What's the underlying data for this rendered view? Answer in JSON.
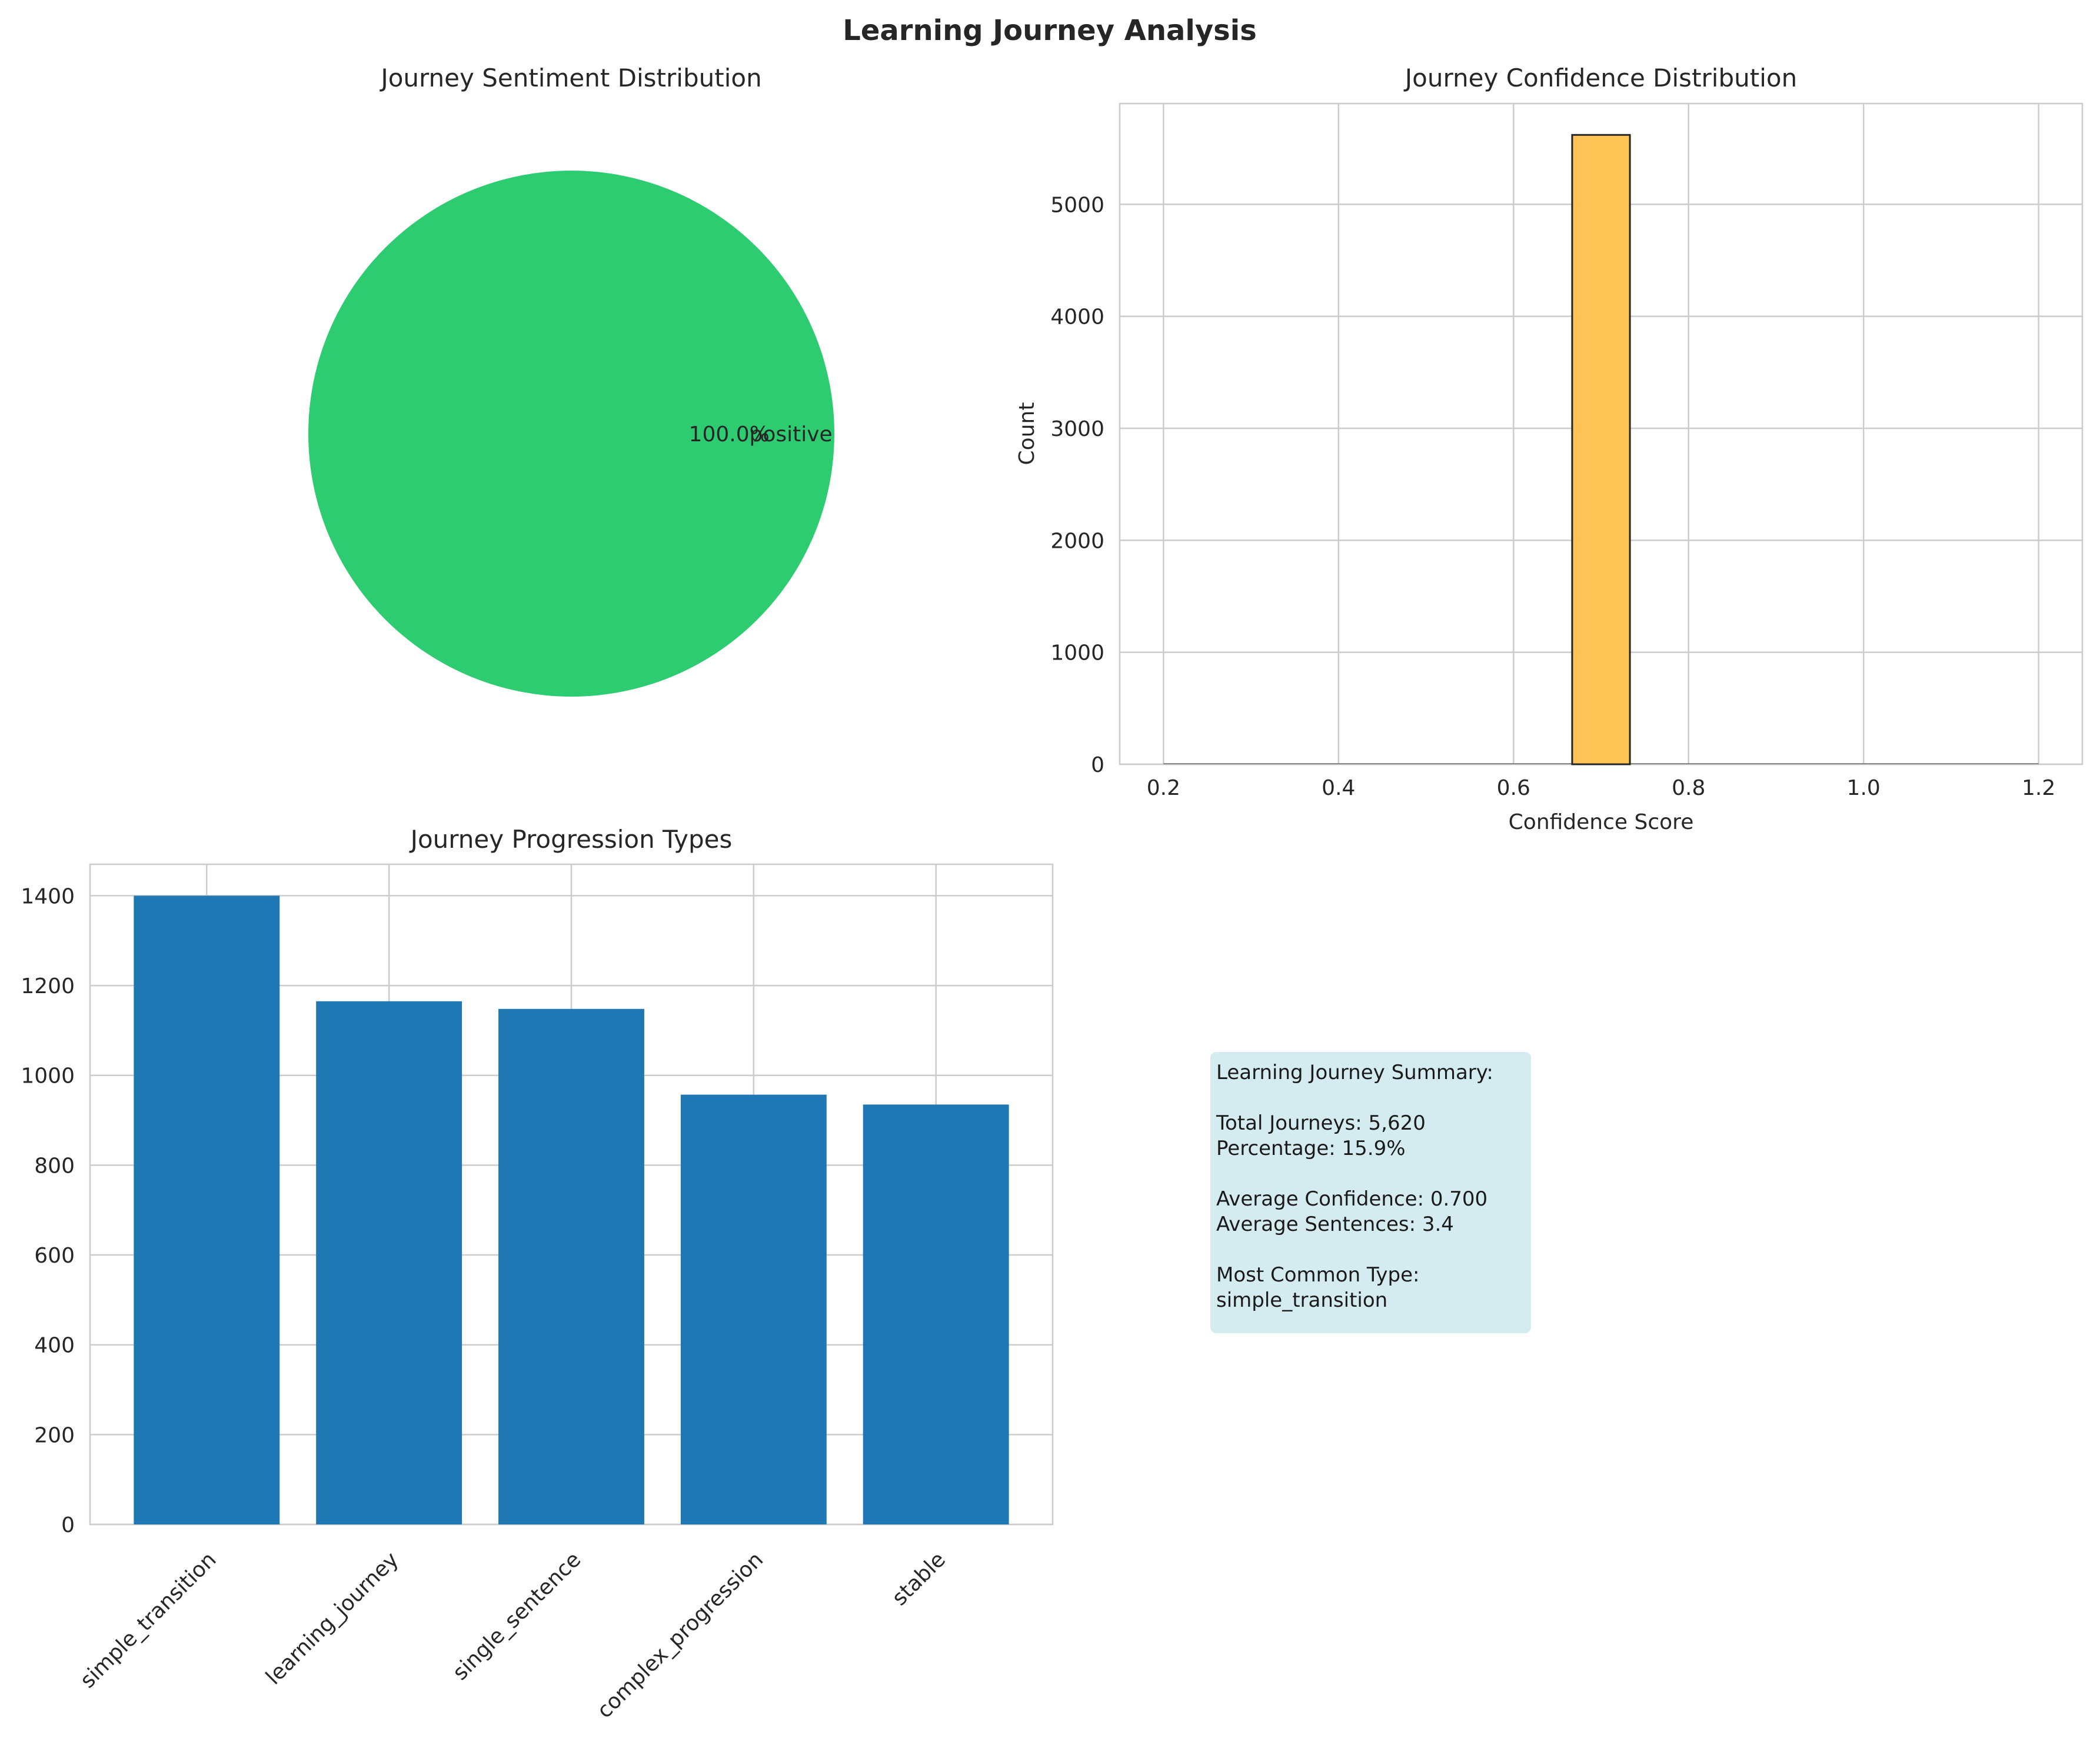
{
  "figure": {
    "title": "Learning Journey Analysis"
  },
  "chart_data": [
    {
      "type": "pie",
      "title": "Journey Sentiment Distribution",
      "labels": [
        "positive"
      ],
      "values": [
        100.0
      ],
      "pct_labels": [
        "100.0%"
      ],
      "colors": [
        "#2ecc71"
      ]
    },
    {
      "type": "bar",
      "title": "Journey Confidence Distribution",
      "xlabel": "Confidence Score",
      "ylabel": "Count",
      "bins": [
        {
          "x0": 0.667,
          "x1": 0.733,
          "count": 5620
        }
      ],
      "xlim": [
        0.15,
        1.25
      ],
      "ylim": [
        0,
        5900
      ],
      "xticks": [
        "0.2",
        "0.4",
        "0.6",
        "0.8",
        "1.0",
        "1.2"
      ],
      "yticks": [
        "0",
        "1000",
        "2000",
        "3000",
        "4000",
        "5000"
      ],
      "grid": true,
      "color": "#ffc04d"
    },
    {
      "type": "bar",
      "title": "Journey Progression Types",
      "xlabel": "",
      "ylabel": "",
      "categories": [
        "simple_transition",
        "learning_journey",
        "single_sentence",
        "complex_progression",
        "stable"
      ],
      "values": [
        1400,
        1165,
        1148,
        957,
        935
      ],
      "ylim": [
        0,
        1470
      ],
      "yticks": [
        "0",
        "200",
        "400",
        "600",
        "800",
        "1000",
        "1200",
        "1400"
      ],
      "grid": true,
      "color": "#1f77b4"
    }
  ],
  "summary": {
    "heading": "Learning Journey Summary:",
    "total": "Total Journeys: 5,620",
    "percentage": "Percentage: 15.9%",
    "avg_confidence": "Average Confidence: 0.700",
    "avg_sentences": "Average Sentences: 3.4",
    "common_label": "Most Common Type:",
    "common_value": "simple_transition"
  }
}
